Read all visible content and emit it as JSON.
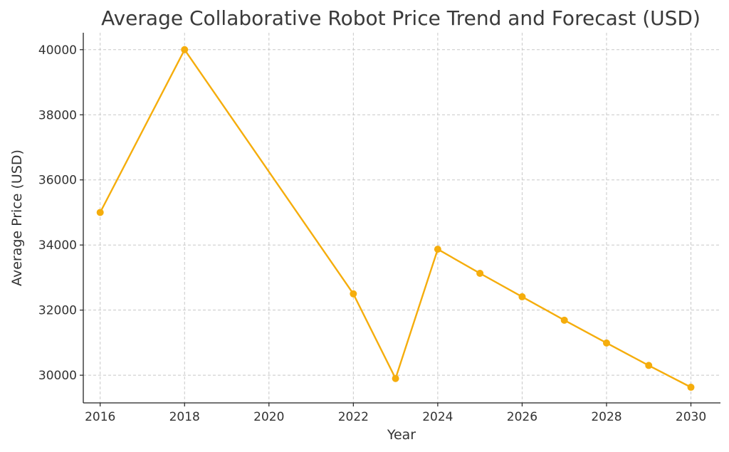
{
  "chart_data": {
    "type": "line",
    "title": "Average Collaborative Robot Price Trend and Forecast (USD)",
    "xlabel": "Year",
    "ylabel": "Average Price (USD)",
    "xlim": [
      2015.6,
      2030.7
    ],
    "ylim": [
      29150,
      40520
    ],
    "xticks": [
      2016,
      2018,
      2020,
      2022,
      2024,
      2026,
      2028,
      2030
    ],
    "yticks": [
      30000,
      32000,
      34000,
      36000,
      38000,
      40000
    ],
    "grid": true,
    "series": [
      {
        "color": "#f5ad0c",
        "x": [
          2016,
          2018,
          2022,
          2023,
          2024,
          2025,
          2026,
          2027,
          2028,
          2029,
          2030
        ],
        "y": [
          35000,
          40000,
          32500,
          29900,
          33870,
          33130,
          32410,
          31690,
          30990,
          30300,
          29630
        ]
      }
    ]
  }
}
